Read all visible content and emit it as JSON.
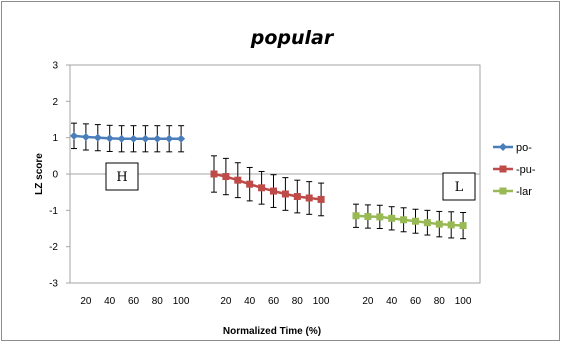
{
  "chart_data": {
    "type": "line",
    "title": "popular",
    "xlabel": "Normalized Time (%)",
    "ylabel": "LZ score",
    "ylim": [
      -3,
      3
    ],
    "yticks": [
      3,
      2,
      1,
      0,
      -1,
      -2,
      -3
    ],
    "x_tick_labels": [
      "20",
      "40",
      "60",
      "80",
      "100"
    ],
    "grid": false,
    "legend_position": "right",
    "series": [
      {
        "name": "po-",
        "color": "#4a7ebb",
        "marker": "diamond",
        "x": [
          10,
          20,
          30,
          40,
          50,
          60,
          70,
          80,
          90,
          100
        ],
        "y": [
          1.05,
          1.02,
          1.0,
          0.98,
          0.97,
          0.97,
          0.97,
          0.97,
          0.97,
          0.97
        ],
        "err": [
          0.35,
          0.36,
          0.36,
          0.36,
          0.36,
          0.36,
          0.36,
          0.36,
          0.36,
          0.36
        ]
      },
      {
        "name": "-pu-",
        "color": "#be4b48",
        "marker": "square",
        "x": [
          10,
          20,
          30,
          40,
          50,
          60,
          70,
          80,
          90,
          100
        ],
        "y": [
          0.0,
          -0.07,
          -0.17,
          -0.28,
          -0.38,
          -0.47,
          -0.55,
          -0.62,
          -0.66,
          -0.7
        ],
        "err": [
          0.5,
          0.5,
          0.48,
          0.46,
          0.45,
          0.45,
          0.45,
          0.45,
          0.45,
          0.45
        ]
      },
      {
        "name": "-lar",
        "color": "#98b954",
        "marker": "square",
        "x": [
          10,
          20,
          30,
          40,
          50,
          60,
          70,
          80,
          90,
          100
        ],
        "y": [
          -1.15,
          -1.17,
          -1.18,
          -1.22,
          -1.26,
          -1.3,
          -1.34,
          -1.38,
          -1.4,
          -1.42
        ],
        "err": [
          0.32,
          0.32,
          0.32,
          0.32,
          0.33,
          0.33,
          0.34,
          0.35,
          0.36,
          0.36
        ]
      }
    ],
    "annotations": [
      "H",
      "L"
    ]
  }
}
